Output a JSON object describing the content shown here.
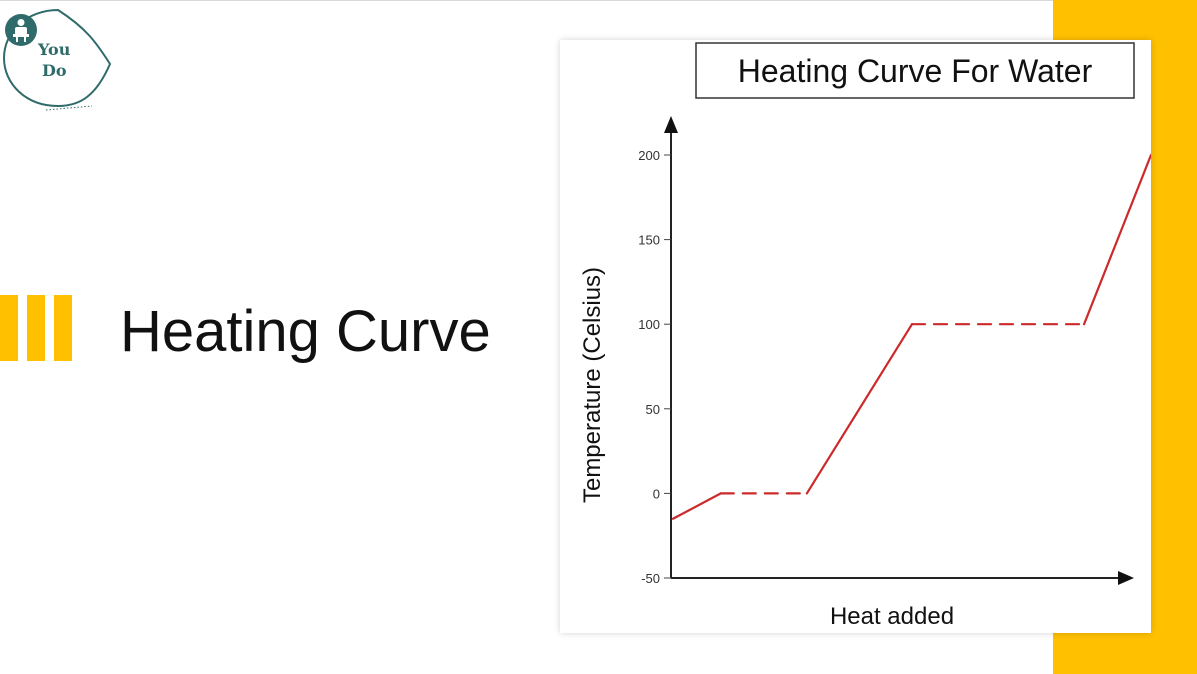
{
  "slide": {
    "title": "Heating Curve",
    "badge": {
      "line1": "You",
      "line2": "Do",
      "icon": "person-icon"
    },
    "colors": {
      "accent": "#FFC000",
      "badge": "#2f6b6a",
      "curve": "#cc2a2a"
    }
  },
  "chart_data": {
    "type": "line",
    "title": "Heating Curve For Water",
    "xlabel": "Heat added",
    "ylabel": "Temperature (Celsius)",
    "ylim": [
      -50,
      200
    ],
    "yticks": [
      200,
      150,
      100,
      50,
      0,
      -50
    ],
    "x_ticks_shown": false,
    "grid": false,
    "series": [
      {
        "values": [
          {
            "x": 0,
            "y": -15
          },
          {
            "x": 10,
            "y": 0
          },
          {
            "x": 28,
            "y": 0
          },
          {
            "x": 50,
            "y": 100
          },
          {
            "x": 86,
            "y": 100
          },
          {
            "x": 100,
            "y": 200
          }
        ],
        "dashed_segments": [
          1,
          3
        ]
      }
    ]
  }
}
